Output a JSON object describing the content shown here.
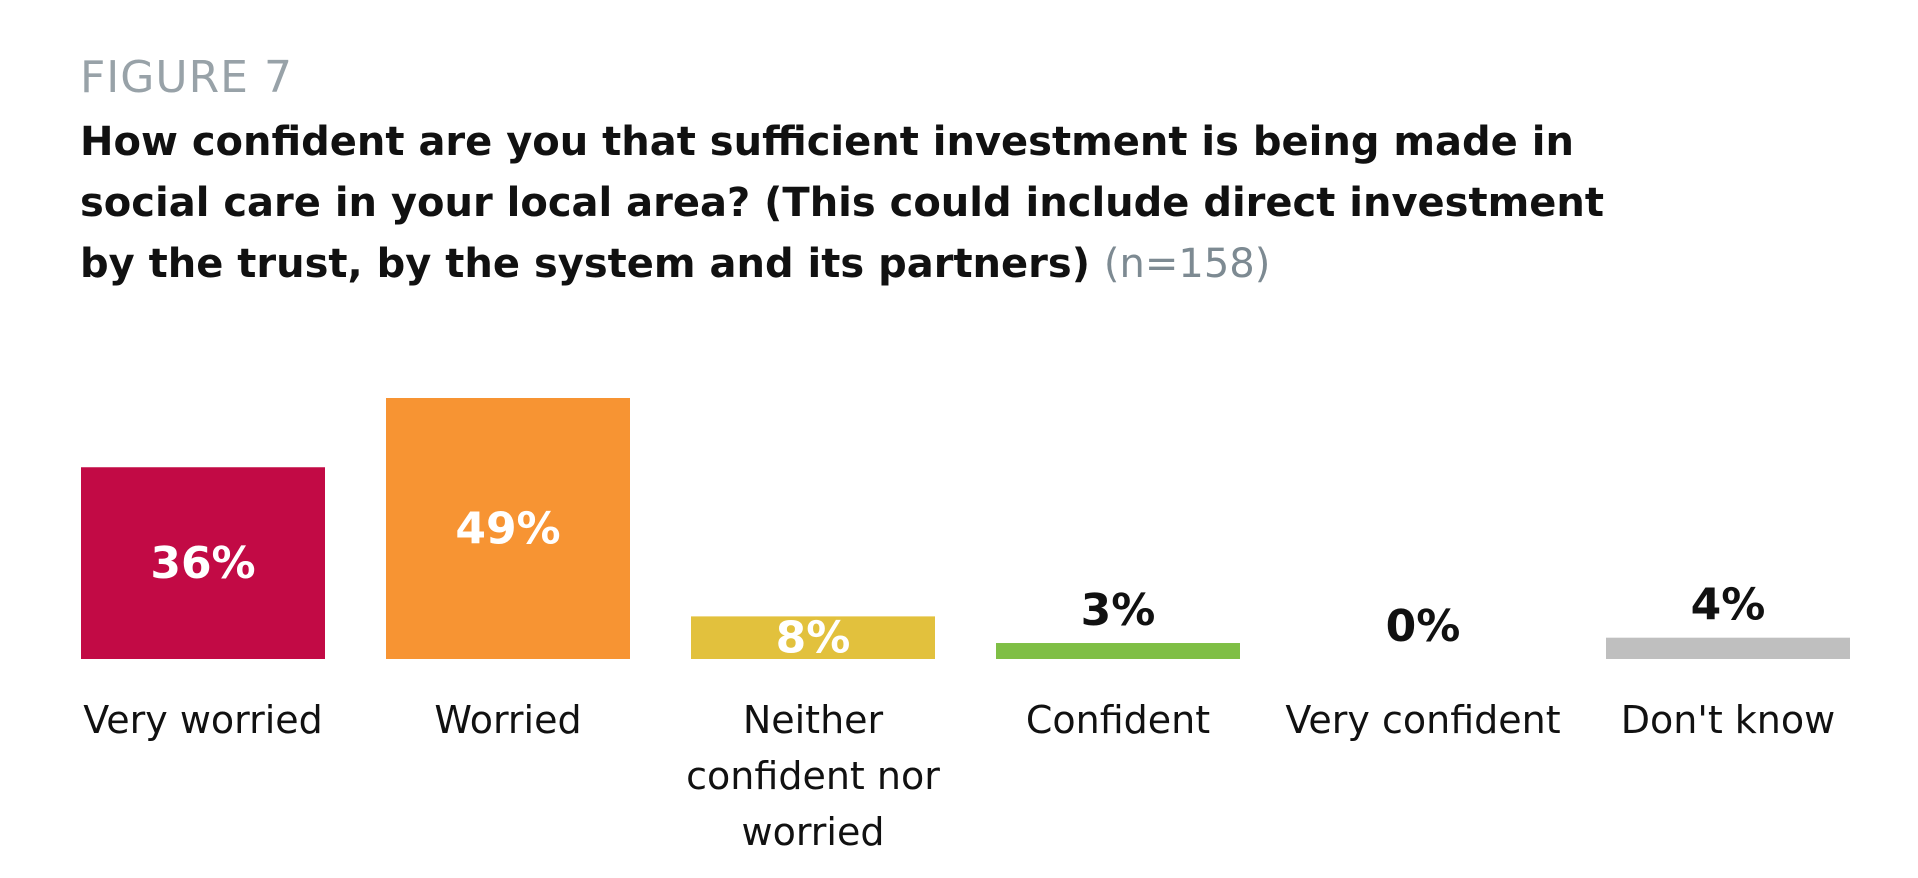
{
  "figure_label": "FIGURE 7",
  "title_main": "How confident are you that sufficient investment is being made in social care in your local area? (This could include direct investment by the trust, by the system and its partners)",
  "title_note": "(n=158)",
  "chart_data": {
    "type": "bar",
    "categories": [
      "Very worried",
      "Worried",
      "Neither confident nor worried",
      "Confident",
      "Very confident",
      "Don't know"
    ],
    "category_lines": [
      [
        "Very worried"
      ],
      [
        "Worried"
      ],
      [
        "Neither",
        "confident nor",
        "worried"
      ],
      [
        "Confident"
      ],
      [
        "Very confident"
      ],
      [
        "Don't know"
      ]
    ],
    "values": [
      36,
      49,
      8,
      3,
      0,
      4
    ],
    "value_labels": [
      "36%",
      "49%",
      "8%",
      "3%",
      "0%",
      "4%"
    ],
    "colors": [
      "#c20a45",
      "#f79433",
      "#e2c13d",
      "#7fbf45",
      "#ffffff",
      "#bfbfbf"
    ],
    "label_inside": [
      true,
      true,
      true,
      false,
      false,
      false
    ],
    "ylim": [
      0,
      49
    ],
    "grid": false,
    "legend": "none"
  }
}
